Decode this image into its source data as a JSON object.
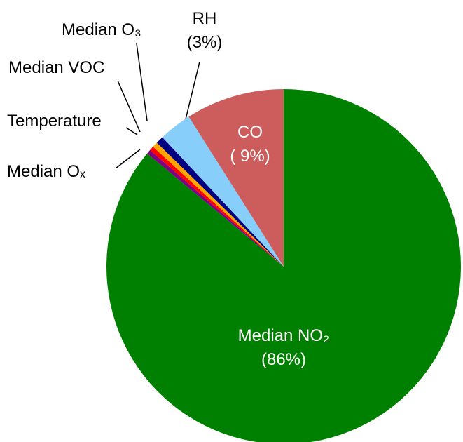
{
  "chart_data": {
    "type": "pie",
    "categories": [
      "Median NO₂",
      "Median Oₓ",
      "Temperature",
      "Median VOC",
      "Median O₃",
      "RH",
      "CO"
    ],
    "values": [
      86,
      0.4,
      0.4,
      0.5,
      0.7,
      3,
      9
    ],
    "value_labels": [
      "(86%)",
      null,
      null,
      null,
      null,
      "(3%)",
      "( 9%)"
    ],
    "colors": [
      "#008000",
      "#800080",
      "#ff0000",
      "#ffa500",
      "#000080",
      "#87cefa",
      "#cd5c5c"
    ]
  }
}
